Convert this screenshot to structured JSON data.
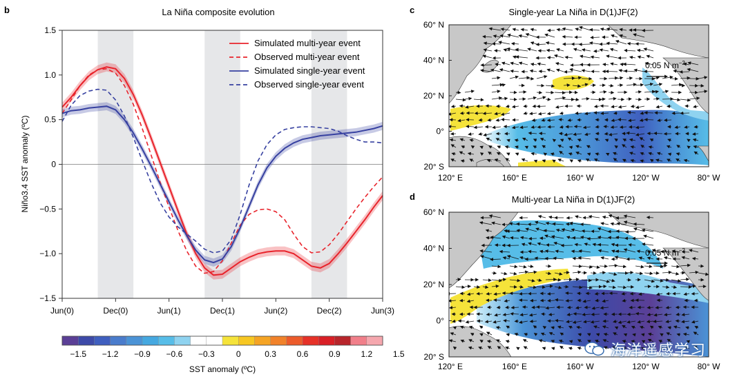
{
  "panel_b": {
    "letter": "b",
    "title": "La Niña composite evolution",
    "ylabel": "Niño3.4 SST anomaly (ºC)"
  },
  "panel_c": {
    "letter": "c",
    "title": "Single-year La Niña in D(1)JF(2)",
    "ref_vector": "0.05 N m",
    "ref_exp": "−2"
  },
  "panel_d": {
    "letter": "d",
    "title": "Multi-year La Niña in D(1)JF(2)",
    "ref_vector": "0.05 N m",
    "ref_exp": "−2"
  },
  "map_axes": {
    "lat_labels": [
      "60° N",
      "40° N",
      "20° N",
      "0°",
      "20° S"
    ],
    "lon_labels": [
      "120° E",
      "160° E",
      "160° W",
      "120° W",
      "80° W"
    ]
  },
  "colorbar": {
    "title": "SST anomaly (ºC)",
    "ticks": [
      "−1.5",
      "−1.2",
      "−0.9",
      "−0.6",
      "−0.3",
      "0",
      "0.3",
      "0.6",
      "0.9",
      "1.2",
      "1.5"
    ],
    "colors": [
      "#5b3f96",
      "#3d4aa8",
      "#3f5fbf",
      "#4a7ccc",
      "#4b93d6",
      "#45a8e0",
      "#57bde8",
      "#8fd3f0",
      "#ffffff",
      "#ffffff",
      "#f5e33a",
      "#f7c722",
      "#f5a424",
      "#f1822a",
      "#ec5b2b",
      "#e63128",
      "#d91f26",
      "#b8252b",
      "#f17f8a",
      "#f5a7ae"
    ]
  },
  "chart_data": {
    "type": "line",
    "title": "La Niña composite evolution",
    "xlabel": "",
    "ylabel": "Niño3.4 SST anomaly (ºC)",
    "x_ticks": [
      "Jun(0)",
      "Dec(0)",
      "Jun(1)",
      "Dec(1)",
      "Jun(2)",
      "Dec(2)",
      "Jun(3)"
    ],
    "xlim": [
      0,
      36
    ],
    "ylim": [
      -1.5,
      1.5
    ],
    "y_ticks": [
      1.5,
      1.0,
      0.5,
      0,
      -0.5,
      -1.0,
      -1.5
    ],
    "y_tick_labels": [
      "1.5",
      "1.0",
      "0.5",
      "0",
      "−0.5",
      "−1.0",
      "−1.5"
    ],
    "shaded_seasons": [
      [
        4,
        8
      ],
      [
        16,
        20
      ],
      [
        28,
        32
      ]
    ],
    "legend_position": "top-right",
    "x": [
      0,
      1,
      2,
      3,
      4,
      5,
      6,
      7,
      8,
      9,
      10,
      11,
      12,
      13,
      14,
      15,
      16,
      17,
      18,
      19,
      20,
      21,
      22,
      23,
      24,
      25,
      26,
      27,
      28,
      29,
      30,
      31,
      32,
      33,
      34,
      35,
      36
    ],
    "series": [
      {
        "name": "Simulated multi-year event",
        "color": "#e8232b",
        "dash": false,
        "values": [
          0.64,
          0.75,
          0.88,
          0.99,
          1.06,
          1.09,
          1.07,
          0.96,
          0.78,
          0.55,
          0.29,
          0.02,
          -0.25,
          -0.52,
          -0.78,
          -1.0,
          -1.16,
          -1.24,
          -1.23,
          -1.16,
          -1.09,
          -1.04,
          -1.0,
          -0.98,
          -0.97,
          -0.97,
          -1.0,
          -1.07,
          -1.14,
          -1.16,
          -1.11,
          -1.0,
          -0.88,
          -0.75,
          -0.62,
          -0.48,
          -0.35
        ],
        "spread": 0.05
      },
      {
        "name": "Observed multi-year event",
        "color": "#e8232b",
        "dash": true,
        "values": [
          0.57,
          0.72,
          0.88,
          1.0,
          1.06,
          1.07,
          1.02,
          0.88,
          0.67,
          0.4,
          0.1,
          -0.2,
          -0.48,
          -0.74,
          -0.97,
          -1.14,
          -1.22,
          -1.2,
          -1.08,
          -0.88,
          -0.68,
          -0.56,
          -0.51,
          -0.5,
          -0.53,
          -0.62,
          -0.78,
          -0.92,
          -0.99,
          -0.98,
          -0.9,
          -0.78,
          -0.64,
          -0.5,
          -0.37,
          -0.25,
          -0.14
        ]
      },
      {
        "name": "Simulated single-year event",
        "color": "#3640a0",
        "dash": false,
        "values": [
          0.57,
          0.6,
          0.61,
          0.63,
          0.64,
          0.65,
          0.61,
          0.5,
          0.35,
          0.17,
          -0.02,
          -0.22,
          -0.42,
          -0.62,
          -0.8,
          -0.96,
          -1.07,
          -1.1,
          -1.06,
          -0.92,
          -0.71,
          -0.47,
          -0.23,
          -0.04,
          0.09,
          0.18,
          0.24,
          0.28,
          0.3,
          0.32,
          0.33,
          0.34,
          0.35,
          0.36,
          0.38,
          0.4,
          0.43
        ],
        "spread": 0.045
      },
      {
        "name": "Observed single-year event",
        "color": "#3640a0",
        "dash": true,
        "values": [
          0.48,
          0.66,
          0.77,
          0.82,
          0.84,
          0.83,
          0.72,
          0.54,
          0.3,
          0.04,
          -0.21,
          -0.43,
          -0.59,
          -0.7,
          -0.78,
          -0.86,
          -0.95,
          -0.99,
          -0.97,
          -0.84,
          -0.56,
          -0.23,
          0.04,
          0.22,
          0.33,
          0.39,
          0.41,
          0.42,
          0.42,
          0.41,
          0.4,
          0.37,
          0.32,
          0.28,
          0.25,
          0.25,
          0.24
        ]
      }
    ]
  },
  "watermark": {
    "text": "海洋遥感学习"
  }
}
